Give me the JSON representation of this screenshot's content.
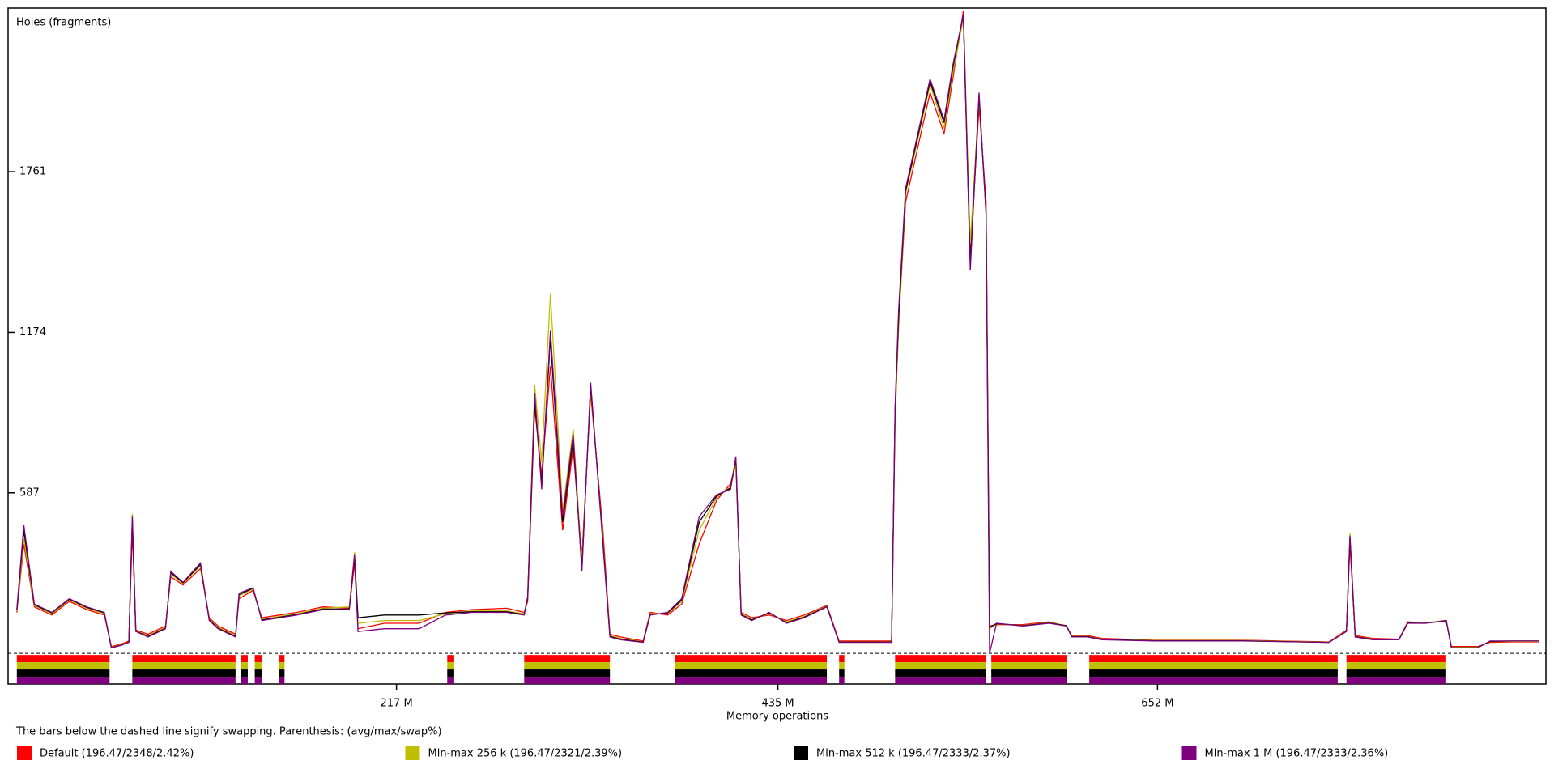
{
  "chart_data": {
    "type": "line",
    "y_label": "Holes (fragments)",
    "x_label": "Memory operations",
    "note": "The bars below the dashed line signify swapping. Parenthesis: (avg/max/swap%)",
    "xlim": [
      -5,
      874
    ],
    "ylim": [
      -112,
      2359
    ],
    "xticks": [
      {
        "value": 217,
        "label": "217 M"
      },
      {
        "value": 435,
        "label": "435 M"
      },
      {
        "value": 652,
        "label": "652 M"
      }
    ],
    "yticks": [
      587,
      1174,
      1761
    ],
    "x": [
      0,
      4,
      10,
      20,
      30,
      40,
      50,
      54,
      60,
      64,
      66,
      68,
      75,
      85,
      88,
      95,
      105,
      110,
      115,
      125,
      127,
      135,
      140,
      150,
      160,
      175,
      190,
      193,
      195,
      210,
      230,
      245,
      260,
      280,
      290,
      292,
      296,
      300,
      305,
      312,
      318,
      323,
      328,
      335,
      339,
      345,
      358,
      362,
      372,
      380,
      390,
      400,
      408,
      411,
      414,
      420,
      430,
      440,
      450,
      463,
      470,
      477,
      490,
      500,
      502,
      504,
      508,
      515,
      522,
      530,
      535,
      541,
      545,
      550,
      554,
      556,
      560,
      575,
      590,
      600,
      603,
      612,
      620,
      650,
      700,
      750,
      760,
      762,
      765,
      775,
      790,
      795,
      805,
      817,
      820,
      835,
      842,
      855,
      870
    ],
    "swap_ranges": [
      [
        0,
        53
      ],
      [
        66,
        125
      ],
      [
        128,
        132
      ],
      [
        136,
        140
      ],
      [
        150,
        153
      ],
      [
        246,
        250
      ],
      [
        290,
        339
      ],
      [
        376,
        463
      ],
      [
        470,
        473
      ],
      [
        502,
        554
      ],
      [
        557,
        600
      ],
      [
        613,
        755
      ],
      [
        760,
        817
      ]
    ],
    "series": [
      {
        "name": "Default (196.47/2348/2.42%)",
        "color": "#ff0000",
        "values": [
          150,
          400,
          170,
          140,
          190,
          160,
          140,
          25,
          35,
          45,
          450,
          85,
          70,
          100,
          280,
          250,
          310,
          130,
          100,
          70,
          200,
          230,
          130,
          140,
          150,
          170,
          165,
          330,
          90,
          110,
          110,
          150,
          160,
          165,
          150,
          190,
          900,
          650,
          1050,
          450,
          750,
          350,
          950,
          450,
          70,
          60,
          45,
          150,
          140,
          180,
          400,
          560,
          620,
          700,
          150,
          130,
          140,
          120,
          140,
          175,
          45,
          45,
          45,
          45,
          850,
          1200,
          1650,
          1850,
          2050,
          1900,
          2100,
          2348,
          1450,
          2000,
          1650,
          100,
          105,
          105,
          115,
          100,
          65,
          65,
          55,
          48,
          48,
          42,
          85,
          400,
          65,
          55,
          52,
          115,
          112,
          118,
          25,
          25,
          40,
          42,
          42
        ]
      },
      {
        "name": "Min-max 256 k (196.47/2321/2.39%)",
        "color": "#bfbf00",
        "values": [
          155,
          420,
          175,
          145,
          195,
          165,
          145,
          22,
          32,
          42,
          510,
          82,
          65,
          95,
          290,
          255,
          320,
          125,
          95,
          65,
          210,
          235,
          125,
          135,
          145,
          165,
          170,
          370,
          110,
          120,
          120,
          145,
          155,
          155,
          145,
          210,
          980,
          700,
          1315,
          520,
          820,
          330,
          970,
          420,
          65,
          55,
          42,
          145,
          145,
          190,
          450,
          570,
          610,
          690,
          145,
          125,
          145,
          115,
          135,
          172,
          42,
          42,
          42,
          42,
          880,
          1180,
          1680,
          1880,
          2080,
          1920,
          2120,
          2321,
          1500,
          2030,
          1620,
          90,
          108,
          102,
          112,
          102,
          62,
          62,
          52,
          47,
          47,
          41,
          82,
          440,
          62,
          52,
          51,
          112,
          111,
          121,
          22,
          22,
          43,
          44,
          44
        ]
      },
      {
        "name": "Min-max 512 k (196.47/2333/2.37%)",
        "color": "#000000",
        "values": [
          158,
          450,
          178,
          148,
          198,
          168,
          148,
          21,
          31,
          41,
          490,
          81,
          62,
          92,
          295,
          258,
          325,
          122,
          92,
          62,
          215,
          238,
          122,
          132,
          142,
          162,
          162,
          350,
          130,
          140,
          140,
          148,
          152,
          152,
          142,
          205,
          920,
          620,
          1150,
          480,
          780,
          310,
          980,
          410,
          62,
          52,
          41,
          142,
          148,
          195,
          480,
          575,
          605,
          710,
          142,
          122,
          148,
          112,
          132,
          171,
          41,
          41,
          41,
          41,
          890,
          1220,
          1690,
          1890,
          2090,
          1940,
          2140,
          2333,
          1420,
          2040,
          1610,
          95,
          109,
          101,
          111,
          101,
          61,
          61,
          51,
          46,
          46,
          40,
          81,
          420,
          61,
          51,
          50,
          111,
          110,
          119,
          21,
          21,
          44,
          45,
          45
        ]
      },
      {
        "name": "Min-max 1 M (196.47/2333/2.36%)",
        "color": "#7f007f",
        "values": [
          160,
          470,
          180,
          150,
          200,
          170,
          150,
          20,
          30,
          40,
          500,
          80,
          60,
          90,
          300,
          260,
          330,
          120,
          90,
          60,
          220,
          240,
          120,
          130,
          140,
          160,
          160,
          360,
          80,
          90,
          90,
          140,
          150,
          150,
          140,
          200,
          950,
          600,
          1180,
          500,
          800,
          300,
          990,
          400,
          60,
          50,
          40,
          140,
          150,
          200,
          500,
          580,
          600,
          720,
          140,
          120,
          150,
          110,
          130,
          170,
          40,
          40,
          40,
          40,
          900,
          1250,
          1700,
          1900,
          2100,
          1950,
          2150,
          2333,
          1400,
          2050,
          1600,
          0,
          110,
          100,
          110,
          100,
          60,
          60,
          50,
          45,
          45,
          40,
          80,
          430,
          60,
          50,
          50,
          110,
          110,
          120,
          20,
          20,
          45,
          45,
          45
        ]
      }
    ]
  }
}
